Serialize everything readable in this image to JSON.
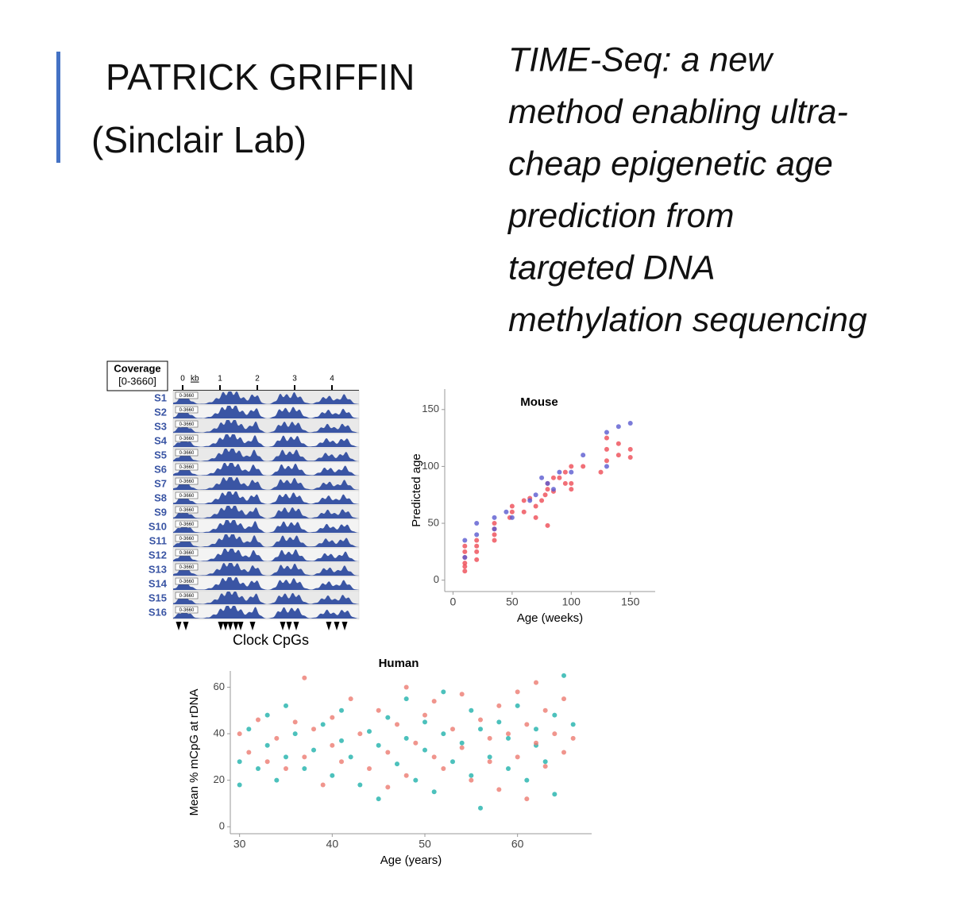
{
  "header": {
    "name": "PATRICK GRIFFIN",
    "lab": "(Sinclair Lab)"
  },
  "subtitle_lines": [
    "TIME-Seq: a new",
    "method enabling ultra-",
    "cheap epigenetic age",
    "prediction from",
    "targeted DNA",
    "methylation sequencing"
  ],
  "tracks": {
    "title": "Coverage",
    "range": "[0-3660]",
    "unit": "kb",
    "ticks": [
      0,
      1,
      2,
      3,
      4
    ],
    "samples": [
      "S1",
      "S2",
      "S3",
      "S4",
      "S5",
      "S6",
      "S7",
      "S8",
      "S9",
      "S10",
      "S11",
      "S12",
      "S13",
      "S14",
      "S15",
      "S16"
    ],
    "row_range": "0-3660",
    "footer": "Clock CpGs"
  },
  "chart_data": [
    {
      "type": "scatter",
      "title": "Mouse",
      "xlabel": "Age (weeks)",
      "ylabel": "Predicted age",
      "xlim": [
        -7,
        171
      ],
      "ylim": [
        -10,
        168
      ],
      "xticks": [
        0,
        50,
        100,
        150
      ],
      "yticks": [
        0,
        50,
        100,
        150
      ],
      "series": [
        {
          "color": "#ee4b55",
          "x": [
            10,
            10,
            10,
            10,
            10,
            10,
            20,
            20,
            20,
            20,
            35,
            35,
            35,
            35,
            48,
            50,
            50,
            60,
            60,
            65,
            70,
            70,
            75,
            78,
            80,
            80,
            80,
            85,
            85,
            90,
            95,
            95,
            100,
            100,
            100,
            110,
            125,
            130,
            130,
            130,
            140,
            140,
            150,
            150
          ],
          "values": [
            8,
            12,
            15,
            20,
            25,
            30,
            18,
            25,
            30,
            35,
            35,
            40,
            45,
            50,
            55,
            60,
            65,
            60,
            70,
            72,
            55,
            65,
            70,
            75,
            80,
            85,
            48,
            90,
            78,
            90,
            95,
            85,
            85,
            80,
            100,
            100,
            95,
            105,
            115,
            125,
            110,
            120,
            115,
            108
          ]
        },
        {
          "color": "#5a5ad0",
          "x": [
            10,
            10,
            20,
            20,
            35,
            35,
            45,
            50,
            65,
            70,
            75,
            80,
            85,
            90,
            100,
            110,
            130,
            130,
            140,
            150
          ],
          "values": [
            20,
            35,
            40,
            50,
            55,
            45,
            60,
            55,
            70,
            75,
            90,
            85,
            80,
            95,
            95,
            110,
            130,
            100,
            135,
            138
          ]
        }
      ]
    },
    {
      "type": "scatter",
      "title": "Human",
      "xlabel": "Age (years)",
      "ylabel": "Mean % mCpG at rDNA",
      "xlim": [
        29,
        68
      ],
      "ylim": [
        -3,
        67
      ],
      "xticks": [
        30,
        40,
        50,
        60
      ],
      "yticks": [
        0,
        20,
        40,
        60
      ],
      "series": [
        {
          "color": "#1fb1ab",
          "x": [
            30,
            30,
            31,
            32,
            33,
            33,
            34,
            35,
            35,
            36,
            37,
            38,
            39,
            40,
            41,
            41,
            42,
            43,
            44,
            45,
            45,
            46,
            47,
            48,
            48,
            49,
            50,
            50,
            51,
            52,
            52,
            53,
            54,
            55,
            55,
            56,
            56,
            57,
            58,
            59,
            59,
            60,
            61,
            62,
            62,
            63,
            64,
            64,
            65,
            66
          ],
          "values": [
            18,
            28,
            42,
            25,
            35,
            48,
            20,
            30,
            52,
            40,
            25,
            33,
            44,
            22,
            37,
            50,
            30,
            18,
            41,
            35,
            12,
            47,
            27,
            38,
            55,
            20,
            33,
            45,
            15,
            40,
            58,
            28,
            36,
            50,
            22,
            8,
            42,
            30,
            45,
            25,
            38,
            52,
            20,
            42,
            35,
            28,
            14,
            48,
            65,
            44
          ]
        },
        {
          "color": "#ec7a70",
          "x": [
            30,
            31,
            32,
            33,
            34,
            35,
            36,
            37,
            37,
            38,
            39,
            40,
            40,
            41,
            42,
            43,
            44,
            45,
            46,
            46,
            47,
            48,
            48,
            49,
            50,
            51,
            51,
            52,
            53,
            54,
            54,
            55,
            56,
            57,
            57,
            58,
            58,
            59,
            60,
            60,
            61,
            62,
            62,
            63,
            63,
            64,
            65,
            65,
            66,
            61
          ],
          "values": [
            40,
            32,
            46,
            28,
            38,
            25,
            45,
            64,
            30,
            42,
            18,
            35,
            47,
            28,
            55,
            40,
            25,
            50,
            32,
            17,
            44,
            60,
            22,
            36,
            48,
            30,
            54,
            25,
            42,
            34,
            57,
            20,
            46,
            38,
            28,
            52,
            16,
            40,
            30,
            58,
            44,
            36,
            62,
            26,
            50,
            40,
            32,
            55,
            38,
            12
          ]
        }
      ]
    }
  ]
}
